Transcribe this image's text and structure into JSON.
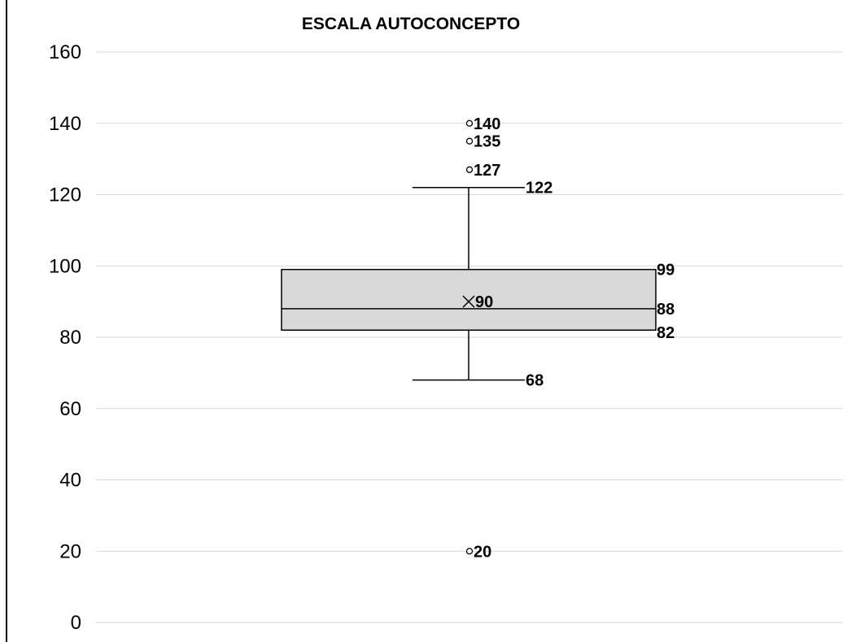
{
  "chart_data": {
    "type": "box",
    "title": "ESCALA AUTOCONCEPTO",
    "ylim": [
      0,
      160
    ],
    "yticks": [
      0,
      20,
      40,
      60,
      80,
      100,
      120,
      140,
      160
    ],
    "ytick_labels": [
      "0",
      "20",
      "40",
      "60",
      "80",
      "100",
      "120",
      "140",
      "160"
    ],
    "grid": true,
    "legend": "none",
    "box": {
      "min_whisker": 68,
      "q1": 82,
      "median": 88,
      "q3": 99,
      "max_whisker": 122,
      "mean": 90,
      "outliers": [
        140,
        135,
        127,
        20
      ]
    },
    "labels": {
      "max_whisker": "122",
      "q3": "99",
      "median": "88",
      "q1": "82",
      "min_whisker": "68",
      "mean": "90",
      "outliers": [
        "140",
        "135",
        "127",
        "20"
      ]
    },
    "colors": {
      "box_fill": "#d9d9d9",
      "stroke": "#000000",
      "grid": "#d9d9d9"
    }
  }
}
